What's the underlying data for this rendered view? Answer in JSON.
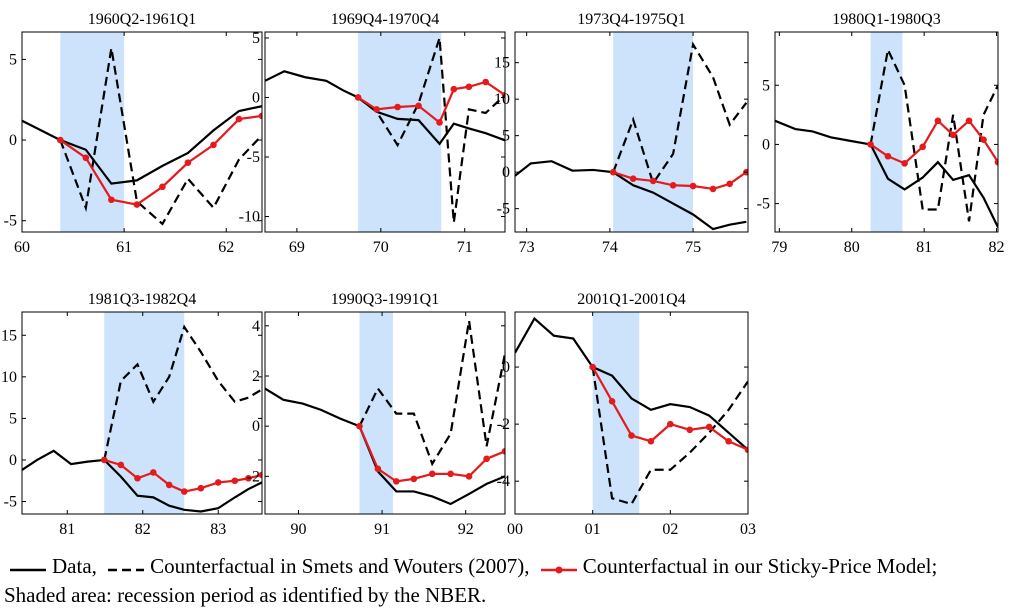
{
  "chart_data": [
    {
      "type": "line",
      "title": "1960Q2-1961Q1",
      "x": [
        60.0,
        60.375,
        60.625,
        60.875,
        61.125,
        61.375,
        61.625,
        61.875,
        62.125,
        62.35
      ],
      "series": [
        {
          "color": "#000000",
          "dash": "solid",
          "values": [
            1.2,
            0,
            -0.6,
            -2.7,
            -2.5,
            -1.6,
            -0.8,
            0.6,
            1.8,
            2.1
          ]
        },
        {
          "color": "#000000",
          "dash": "dashed",
          "values": [
            null,
            0,
            -4.2,
            5.7,
            -3.8,
            -5.2,
            -2.4,
            -4.2,
            -1.2,
            0.3
          ]
        },
        {
          "color": "#e41a1c",
          "dash": "solid",
          "marker": "circle",
          "values": [
            null,
            0,
            -1.1,
            -3.7,
            -4.0,
            -2.9,
            -1.4,
            -0.3,
            1.3,
            1.5
          ]
        }
      ],
      "recession": [
        60.375,
        61.0
      ],
      "recession_color": "#cce3fb",
      "xlim": [
        60,
        62.35
      ],
      "xticks": [
        60,
        61,
        62
      ],
      "ylim": [
        -5.7,
        6.7
      ],
      "yticks": [
        -5,
        0,
        5
      ]
    },
    {
      "type": "line",
      "title": "1969Q4-1970Q4",
      "x": [
        68.62,
        68.85,
        69.1,
        69.35,
        69.55,
        69.73,
        69.95,
        70.2,
        70.45,
        70.7,
        70.87,
        71.05,
        71.25,
        71.48
      ],
      "series": [
        {
          "color": "#000000",
          "dash": "solid",
          "values": [
            1.4,
            2.2,
            1.7,
            1.4,
            0.6,
            0,
            -1.2,
            -1.8,
            -1.9,
            -3.9,
            -2.2,
            -2.6,
            -3.0,
            -3.6
          ]
        },
        {
          "color": "#000000",
          "dash": "dashed",
          "values": [
            null,
            null,
            null,
            null,
            null,
            0,
            -1.2,
            -4.0,
            -0.5,
            5.0,
            -10.5,
            -1.0,
            -1.3,
            0.2
          ]
        },
        {
          "color": "#e41a1c",
          "dash": "solid",
          "marker": "circle",
          "values": [
            null,
            null,
            null,
            null,
            null,
            0,
            -1.0,
            -0.8,
            -0.7,
            -2.1,
            0.7,
            0.9,
            1.3,
            0.2
          ]
        }
      ],
      "recession": [
        69.73,
        70.72
      ],
      "recession_color": "#cce3fb",
      "xlim": [
        68.62,
        71.48
      ],
      "xticks": [
        69,
        70,
        71
      ],
      "ylim": [
        -11.3,
        5.5
      ],
      "yticks": [
        -10,
        -5,
        0,
        5
      ]
    },
    {
      "type": "line",
      "title": "1973Q4-1975Q1",
      "x": [
        72.86,
        73.05,
        73.3,
        73.55,
        73.8,
        74.04,
        74.28,
        74.52,
        74.76,
        75.0,
        75.24,
        75.44,
        75.64
      ],
      "series": [
        {
          "color": "#000000",
          "dash": "solid",
          "values": [
            -0.5,
            1.2,
            1.5,
            0.2,
            0.3,
            0,
            -1.8,
            -2.8,
            -4.3,
            -5.8,
            -7.8,
            -7.2,
            -6.8
          ]
        },
        {
          "color": "#000000",
          "dash": "dashed",
          "values": [
            null,
            null,
            null,
            null,
            null,
            0,
            7.2,
            -1.5,
            2.5,
            17.5,
            13.0,
            6.5,
            9.5
          ]
        },
        {
          "color": "#e41a1c",
          "dash": "solid",
          "marker": "circle",
          "values": [
            null,
            null,
            null,
            null,
            null,
            0,
            -0.9,
            -1.2,
            -1.8,
            -1.9,
            -2.3,
            -1.6,
            0
          ]
        }
      ],
      "recession": [
        74.04,
        75.0
      ],
      "recession_color": "#cce3fb",
      "xlim": [
        72.86,
        75.66
      ],
      "xticks": [
        73,
        74,
        75
      ],
      "ylim": [
        -8.2,
        19.2
      ],
      "yticks": [
        -5,
        0,
        5,
        10,
        15
      ]
    },
    {
      "type": "line",
      "title": "1980Q1-1980Q3",
      "x": [
        78.94,
        79.22,
        79.46,
        79.71,
        79.98,
        80.26,
        80.5,
        80.73,
        80.98,
        81.19,
        81.4,
        81.62,
        81.82,
        82.02
      ],
      "series": [
        {
          "color": "#000000",
          "dash": "solid",
          "values": [
            2.0,
            1.3,
            1.1,
            0.6,
            0.3,
            0,
            -2.9,
            -3.8,
            -2.8,
            -1.5,
            -3.0,
            -2.6,
            -4.5,
            -7.0
          ]
        },
        {
          "color": "#000000",
          "dash": "dashed",
          "values": [
            null,
            null,
            null,
            null,
            null,
            0,
            8.0,
            5.0,
            -5.5,
            -5.5,
            2.5,
            -6.5,
            2.5,
            5.0
          ]
        },
        {
          "color": "#e41a1c",
          "dash": "solid",
          "marker": "circle",
          "values": [
            null,
            null,
            null,
            null,
            null,
            0,
            -1.0,
            -1.6,
            -0.2,
            2.0,
            0.8,
            2.0,
            0.4,
            -1.5
          ]
        }
      ],
      "recession": [
        80.26,
        80.7
      ],
      "recession_color": "#cce3fb",
      "xlim": [
        78.94,
        82.02
      ],
      "xticks": [
        79,
        80,
        81,
        82
      ],
      "ylim": [
        -7.4,
        9.5
      ],
      "yticks": [
        -5,
        0,
        5
      ]
    },
    {
      "type": "line",
      "title": "1981Q3-1982Q4",
      "x": [
        80.4,
        80.6,
        80.82,
        81.05,
        81.27,
        81.49,
        81.71,
        81.93,
        82.14,
        82.35,
        82.55,
        82.77,
        83.0,
        83.22,
        83.4,
        83.58
      ],
      "series": [
        {
          "color": "#000000",
          "dash": "solid",
          "values": [
            -1.2,
            0,
            1.1,
            -0.5,
            -0.2,
            0,
            -2.0,
            -4.3,
            -4.5,
            -5.5,
            -6.0,
            -6.2,
            -5.8,
            -4.5,
            -3.5,
            -2.7
          ]
        },
        {
          "color": "#000000",
          "dash": "dashed",
          "values": [
            null,
            null,
            null,
            null,
            null,
            0,
            9.5,
            11.5,
            7.0,
            10.0,
            16.0,
            13.0,
            9.5,
            7.0,
            7.5,
            8.5
          ]
        },
        {
          "color": "#e41a1c",
          "dash": "solid",
          "marker": "circle",
          "values": [
            null,
            null,
            null,
            null,
            null,
            0,
            -0.6,
            -2.2,
            -1.5,
            -3.0,
            -3.8,
            -3.4,
            -2.7,
            -2.5,
            -2.2,
            -1.8
          ]
        }
      ],
      "recession": [
        81.49,
        82.55
      ],
      "recession_color": "#cce3fb",
      "xlim": [
        80.4,
        83.58
      ],
      "xticks": [
        81,
        82,
        83
      ],
      "ylim": [
        -6.5,
        17.8
      ],
      "yticks": [
        -5,
        0,
        5,
        10,
        15
      ]
    },
    {
      "type": "line",
      "title": "1990Q3-1991Q1",
      "x": [
        89.6,
        89.82,
        90.05,
        90.27,
        90.5,
        90.73,
        90.95,
        91.17,
        91.38,
        91.6,
        91.82,
        92.04,
        92.25,
        92.47
      ],
      "series": [
        {
          "color": "#000000",
          "dash": "solid",
          "values": [
            1.5,
            1.05,
            0.9,
            0.65,
            0.3,
            0,
            -1.8,
            -2.6,
            -2.6,
            -2.8,
            -3.1,
            -2.7,
            -2.3,
            -2.0
          ]
        },
        {
          "color": "#000000",
          "dash": "dashed",
          "values": [
            null,
            null,
            null,
            null,
            null,
            0,
            1.5,
            0.5,
            0.5,
            -1.5,
            -0.3,
            4.2,
            -0.8,
            2.9
          ]
        },
        {
          "color": "#e41a1c",
          "dash": "solid",
          "marker": "circle",
          "values": [
            null,
            null,
            null,
            null,
            null,
            0,
            -1.7,
            -2.2,
            -2.1,
            -1.9,
            -1.9,
            -2.0,
            -1.3,
            -1.0
          ]
        }
      ],
      "recession": [
        90.73,
        91.13
      ],
      "recession_color": "#cce3fb",
      "xlim": [
        89.6,
        92.47
      ],
      "xticks": [
        90,
        91,
        92
      ],
      "ylim": [
        -3.5,
        4.55
      ],
      "yticks": [
        -2,
        0,
        2,
        4
      ]
    },
    {
      "type": "line",
      "title": "2001Q1-2001Q4",
      "x": [
        0,
        0.25,
        0.5,
        0.75,
        1.0,
        1.25,
        1.5,
        1.75,
        2.0,
        2.25,
        2.5,
        2.75,
        3.0
      ],
      "series": [
        {
          "color": "#000000",
          "dash": "solid",
          "values": [
            0.5,
            1.7,
            1.1,
            1.0,
            0,
            -0.3,
            -1.1,
            -1.5,
            -1.3,
            -1.4,
            -1.7,
            -2.3,
            -2.9
          ]
        },
        {
          "color": "#000000",
          "dash": "dashed",
          "values": [
            null,
            null,
            null,
            null,
            0,
            -4.6,
            -4.8,
            -3.6,
            -3.6,
            -3.0,
            -2.3,
            -1.5,
            -0.5
          ]
        },
        {
          "color": "#e41a1c",
          "dash": "solid",
          "marker": "circle",
          "values": [
            null,
            null,
            null,
            null,
            0,
            -1.2,
            -2.4,
            -2.6,
            -2.0,
            -2.2,
            -2.1,
            -2.6,
            -2.9
          ]
        }
      ],
      "recession": [
        1.0,
        1.6
      ],
      "recession_color": "#cce3fb",
      "xlim": [
        0,
        3
      ],
      "xticks": [
        {
          "value": 0,
          "label": "00"
        },
        {
          "value": 1,
          "label": "01"
        },
        {
          "value": 2,
          "label": "02"
        },
        {
          "value": 3,
          "label": "03"
        }
      ],
      "ylim": [
        -5.15,
        1.93
      ],
      "yticks": [
        -4,
        -2,
        0
      ]
    }
  ],
  "legend": [
    {
      "name": "Data,",
      "color": "#000000",
      "dash": "solid"
    },
    {
      "name": "Counterfactual in Smets and Wouters (2007),",
      "color": "#000000",
      "dash": "dashed"
    },
    {
      "name": "Counterfactual in our Sticky-Price Model;",
      "color": "#e41a1c",
      "dash": "solid",
      "marker": "circle"
    }
  ],
  "note": "Shaded area: recession period as identified by the NBER."
}
